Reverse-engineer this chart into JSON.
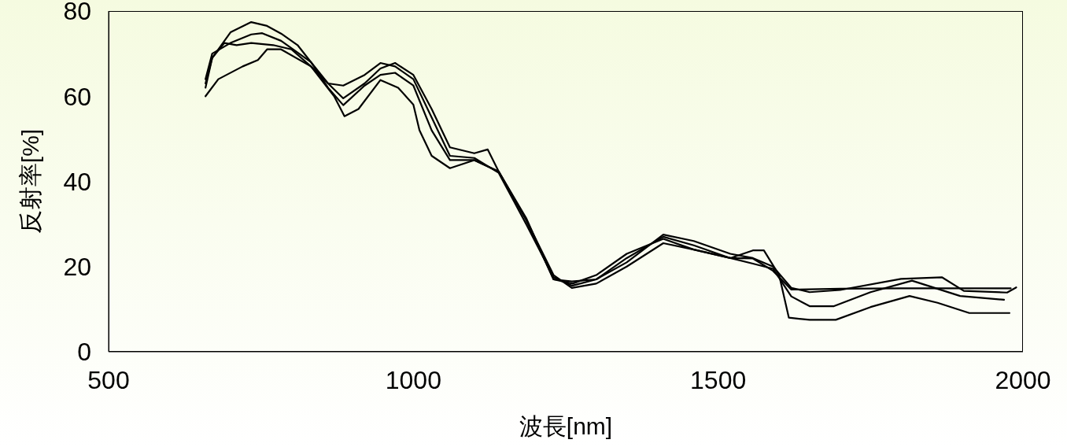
{
  "chart_data": {
    "type": "line",
    "xlabel": "波長[nm]",
    "ylabel": "反射率[%]",
    "xlim": [
      500,
      2000
    ],
    "xticks": [
      500,
      1000,
      1500,
      2000
    ],
    "ylim": [
      0,
      80
    ],
    "yticks": [
      0,
      20,
      40,
      60,
      80
    ],
    "series": [
      {
        "color": "#000000",
        "x": [
          659,
          670,
          700,
          734,
          760,
          783,
          810,
          832,
          860,
          885,
          920,
          946,
          970,
          1000,
          1030,
          1060,
          1100,
          1122,
          1140,
          1185,
          1230,
          1260,
          1300,
          1350,
          1410,
          1460,
          1520,
          1557,
          1590,
          1620,
          1700,
          1800,
          1900,
          1980
        ],
        "values": [
          63,
          69,
          75,
          77.4,
          76.5,
          74.7,
          72,
          68,
          63,
          59.5,
          63,
          66.5,
          67.8,
          65,
          57,
          48,
          46.6,
          47.5,
          42.3,
          31,
          18,
          15,
          16,
          20,
          25.5,
          24,
          22,
          21.9,
          19,
          14.6,
          14.8,
          14.9,
          14.9,
          14.9
        ]
      },
      {
        "color": "#000000",
        "x": [
          659,
          670,
          700,
          734,
          752,
          783,
          832,
          860,
          885,
          920,
          946,
          970,
          1000,
          1030,
          1060,
          1100,
          1140,
          1185,
          1230,
          1260,
          1300,
          1350,
          1410,
          1460,
          1520,
          1557,
          1590,
          1620,
          1650,
          1700,
          1800,
          1867,
          1903,
          1974,
          1989
        ],
        "values": [
          64,
          70,
          72.5,
          74.5,
          74.8,
          73,
          68,
          62,
          57.9,
          62.5,
          65,
          65.5,
          62.5,
          52,
          45,
          45,
          42.3,
          31.4,
          17,
          16.5,
          17,
          21,
          27.5,
          26,
          23,
          22,
          20,
          15,
          14,
          14.5,
          17.1,
          17.5,
          14.3,
          13.9,
          15.1
        ]
      },
      {
        "color": "#000000",
        "x": [
          659,
          670,
          690,
          710,
          734,
          770,
          800,
          832,
          860,
          885,
          920,
          946,
          970,
          1000,
          1030,
          1060,
          1100,
          1140,
          1185,
          1230,
          1260,
          1300,
          1350,
          1410,
          1460,
          1520,
          1557,
          1590,
          1620,
          1650,
          1690,
          1750,
          1818,
          1897,
          1969
        ],
        "values": [
          62,
          69,
          72.5,
          72,
          72.5,
          72,
          71,
          67,
          63,
          62.5,
          65,
          67.8,
          67,
          64,
          55,
          46,
          45.5,
          42,
          30,
          17.5,
          15.5,
          17,
          22,
          27,
          25,
          22,
          20.7,
          19.5,
          13,
          10.7,
          10.7,
          14,
          16.7,
          13.1,
          12.2
        ]
      },
      {
        "color": "#000000",
        "x": [
          659,
          680,
          720,
          745,
          760,
          783,
          832,
          870,
          887,
          910,
          946,
          975,
          1000,
          1010,
          1030,
          1060,
          1100,
          1140,
          1185,
          1230,
          1261,
          1300,
          1350,
          1410,
          1460,
          1520,
          1557,
          1575,
          1600,
          1616,
          1650,
          1693,
          1750,
          1814,
          1860,
          1912,
          1978
        ],
        "values": [
          60,
          64,
          67,
          68.5,
          71,
          71,
          67,
          60,
          55.3,
          57,
          63.8,
          62,
          58,
          52,
          46,
          43.1,
          45,
          42.3,
          31,
          17,
          16,
          18,
          23,
          26.5,
          24,
          22,
          23.8,
          23.8,
          18,
          8,
          7.5,
          7.5,
          10.5,
          13.1,
          11.5,
          9.1,
          9.1
        ]
      }
    ]
  }
}
